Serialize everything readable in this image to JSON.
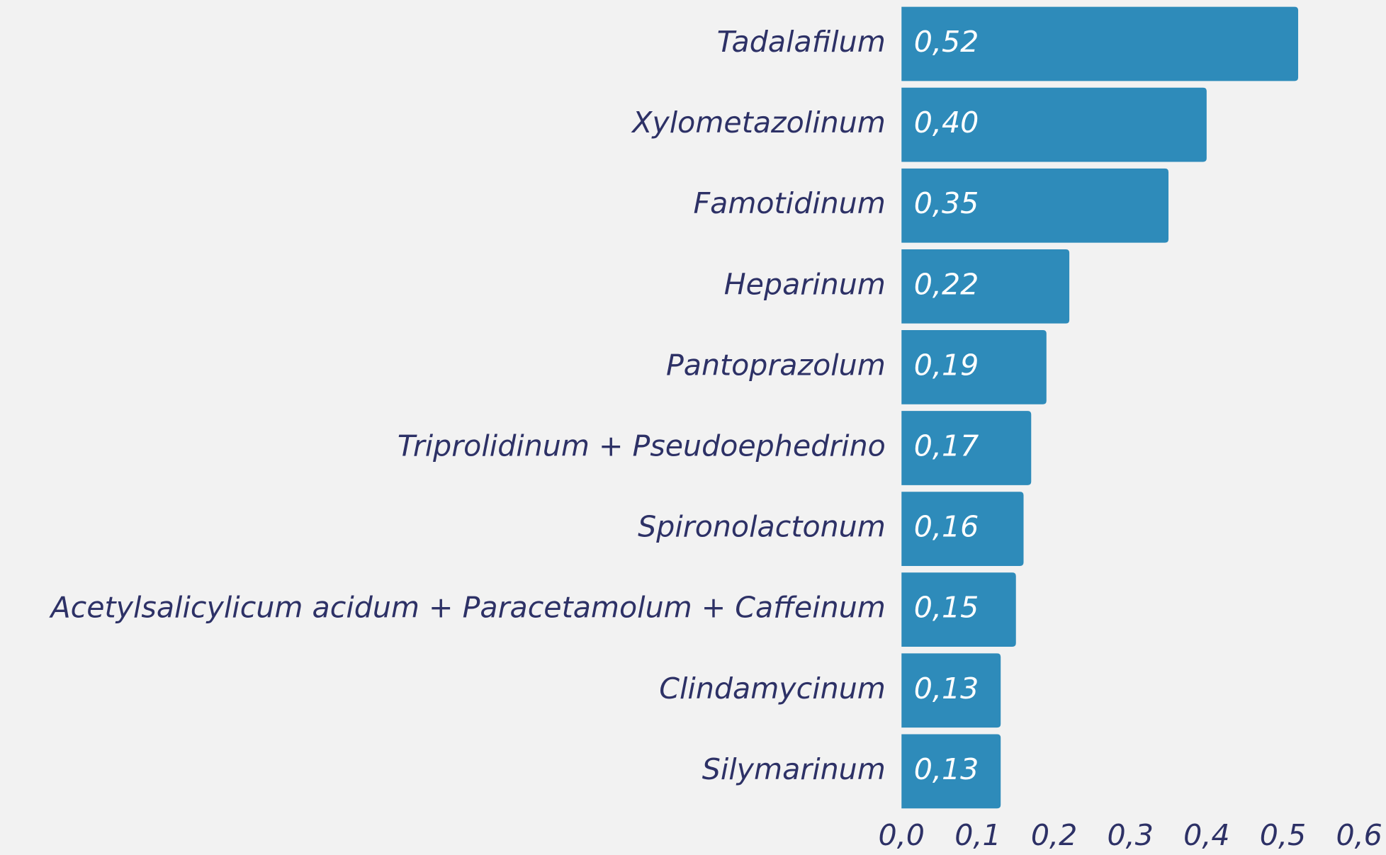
{
  "chart_data": {
    "type": "hbar",
    "categories": [
      "Tadalafilum",
      "Xylometazolinum",
      "Famotidinum",
      "Heparinum",
      "Pantoprazolum",
      "Triprolidinum + Pseudoephedrino",
      "Spironolactonum",
      "Acetylsalicylicum acidum + Paracetamolum + Caffeinum",
      "Clindamycinum",
      "Silymarinum"
    ],
    "values": [
      0.52,
      0.4,
      0.35,
      0.22,
      0.19,
      0.17,
      0.16,
      0.15,
      0.13,
      0.13
    ],
    "value_labels": [
      "0,52",
      "0,40",
      "0,35",
      "0,22",
      "0,19",
      "0,17",
      "0,16",
      "0,15",
      "0,13",
      "0,13"
    ],
    "color": "#2e8bba",
    "xlim": [
      0,
      0.6
    ],
    "xticks": [
      {
        "value": 0,
        "label": "0,0"
      },
      {
        "value": 0.1,
        "label": "0,1"
      },
      {
        "value": 0.2,
        "label": "0,2"
      },
      {
        "value": 0.3,
        "label": "0,3"
      },
      {
        "value": 0.4,
        "label": "0,4"
      },
      {
        "value": 0.5,
        "label": "0,5"
      },
      {
        "value": 0.6,
        "label": "0,6"
      }
    ],
    "grid": false
  }
}
